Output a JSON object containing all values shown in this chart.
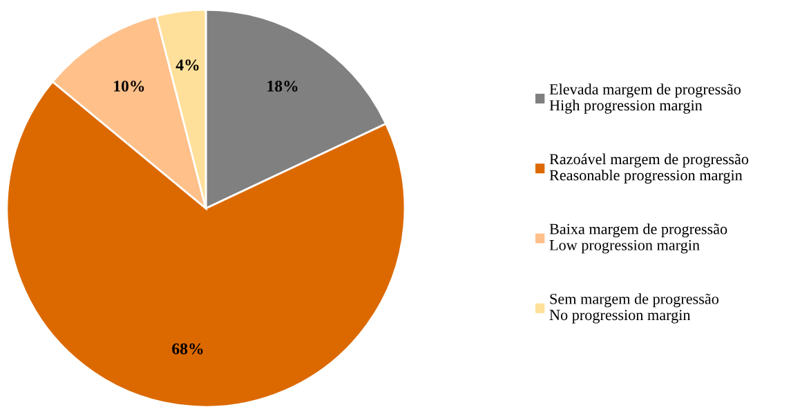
{
  "chart_data": {
    "type": "pie",
    "categories": [
      "Elevada margem de progressão\nHigh progression margin",
      "Razoável margem de progressão\nReasonable progression margin",
      "Baixa margem de progressão\nLow progression margin",
      "Sem margem de progressão\nNo progression margin"
    ],
    "values": [
      18,
      68,
      10,
      4
    ],
    "colors": [
      "#808080",
      "#dc6900",
      "#ffc08a",
      "#ffe09a"
    ],
    "value_labels": [
      "18%",
      "68%",
      "10%",
      "4%"
    ],
    "legend": "right"
  }
}
